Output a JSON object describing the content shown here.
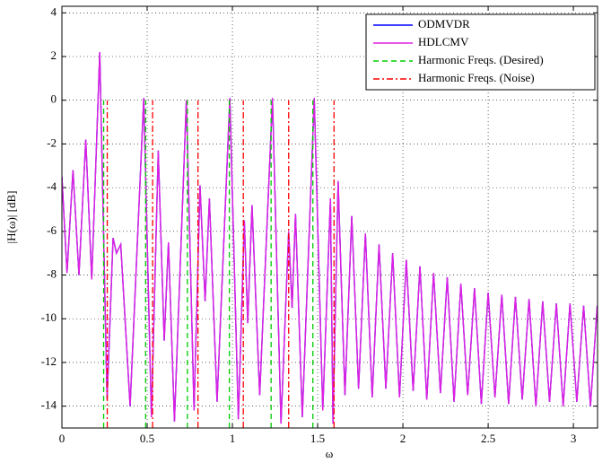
{
  "chart_data": {
    "type": "line",
    "xlabel": "ω",
    "ylabel": "|H(ω)| [dB]",
    "xlim": [
      0,
      3.1416
    ],
    "ylim": [
      -15,
      4.3
    ],
    "xticks": [
      0,
      0.5,
      1,
      1.5,
      2,
      2.5,
      3
    ],
    "yticks": [
      -14,
      -12,
      -10,
      -8,
      -6,
      -4,
      -2,
      0,
      2,
      4
    ],
    "grid": true,
    "legend": "upper right",
    "series": [
      {
        "name": "ODMVDR",
        "color": "#0000ff",
        "style": "solid",
        "x": [
          0,
          0.03,
          0.065,
          0.1,
          0.14,
          0.175,
          0.222,
          0.265,
          0.3,
          0.32,
          0.345,
          0.4,
          0.48,
          0.525,
          0.565,
          0.6,
          0.625,
          0.66,
          0.73,
          0.775,
          0.81,
          0.84,
          0.865,
          0.91,
          0.985,
          1.035,
          1.07,
          1.09,
          1.115,
          1.16,
          1.235,
          1.285,
          1.33,
          1.35,
          1.37,
          1.41,
          1.48,
          1.53,
          1.575,
          1.59,
          1.62,
          1.66,
          1.7,
          1.74,
          1.78,
          1.82,
          1.86,
          1.9,
          1.94,
          1.98,
          2.02,
          2.06,
          2.1,
          2.14,
          2.18,
          2.22,
          2.26,
          2.3,
          2.34,
          2.38,
          2.42,
          2.46,
          2.5,
          2.54,
          2.58,
          2.62,
          2.66,
          2.7,
          2.74,
          2.78,
          2.82,
          2.86,
          2.9,
          2.94,
          2.98,
          3.02,
          3.06,
          3.1,
          3.14
        ],
        "values": [
          -3.5,
          -7.9,
          -3.2,
          -8.0,
          -1.8,
          -8.2,
          2.2,
          -13.7,
          -6.3,
          -7.0,
          -6.6,
          -14.0,
          0.1,
          -14.5,
          -2.3,
          -11,
          -6.5,
          -14.7,
          0.0,
          -14.2,
          -3.9,
          -9.2,
          -4.5,
          -13.8,
          0.1,
          -14.6,
          -5.5,
          -10.2,
          -4.8,
          -13.5,
          0.1,
          -14.8,
          -6,
          -9.5,
          -5.2,
          -14.5,
          0.1,
          -14.2,
          -4.5,
          -14.8,
          -3.7,
          -13.5,
          -5.3,
          -13.2,
          -6.1,
          -13.6,
          -6.6,
          -13.2,
          -7.0,
          -13.6,
          -7.3,
          -13.3,
          -7.6,
          -13.7,
          -7.9,
          -13.4,
          -8.1,
          -13.8,
          -8.4,
          -13.5,
          -8.6,
          -13.9,
          -8.8,
          -13.6,
          -8.9,
          -13.9,
          -9.0,
          -13.7,
          -9.1,
          -14.0,
          -9.2,
          -13.8,
          -9.3,
          -14.0,
          -9.3,
          -13.8,
          -9.4,
          -14.0,
          -9.4
        ]
      },
      {
        "name": "HDLCMV",
        "color": "#e020e0",
        "style": "solid",
        "x": [
          0,
          0.03,
          0.065,
          0.1,
          0.14,
          0.175,
          0.222,
          0.265,
          0.3,
          0.32,
          0.345,
          0.4,
          0.48,
          0.525,
          0.565,
          0.6,
          0.625,
          0.66,
          0.73,
          0.775,
          0.81,
          0.84,
          0.865,
          0.91,
          0.985,
          1.035,
          1.07,
          1.09,
          1.115,
          1.16,
          1.235,
          1.285,
          1.33,
          1.35,
          1.37,
          1.41,
          1.48,
          1.53,
          1.575,
          1.59,
          1.62,
          1.66,
          1.7,
          1.74,
          1.78,
          1.82,
          1.86,
          1.9,
          1.94,
          1.98,
          2.02,
          2.06,
          2.1,
          2.14,
          2.18,
          2.22,
          2.26,
          2.3,
          2.34,
          2.38,
          2.42,
          2.46,
          2.5,
          2.54,
          2.58,
          2.62,
          2.66,
          2.7,
          2.74,
          2.78,
          2.82,
          2.86,
          2.9,
          2.94,
          2.98,
          3.02,
          3.06,
          3.1,
          3.14
        ],
        "values": [
          -3.5,
          -7.9,
          -3.2,
          -8.0,
          -1.8,
          -8.2,
          2.2,
          -13.7,
          -6.3,
          -7.0,
          -6.6,
          -14.0,
          0.1,
          -14.5,
          -2.3,
          -11,
          -6.5,
          -14.7,
          0.0,
          -14.2,
          -3.9,
          -9.2,
          -4.5,
          -13.8,
          0.1,
          -14.6,
          -5.5,
          -10.2,
          -4.8,
          -13.5,
          0.1,
          -14.8,
          -6,
          -9.5,
          -5.2,
          -14.5,
          0.1,
          -14.2,
          -4.5,
          -14.8,
          -3.7,
          -13.5,
          -5.3,
          -13.2,
          -6.1,
          -13.6,
          -6.6,
          -13.2,
          -7.0,
          -13.6,
          -7.3,
          -13.3,
          -7.6,
          -13.7,
          -7.9,
          -13.4,
          -8.1,
          -13.8,
          -8.4,
          -13.5,
          -8.6,
          -13.9,
          -8.8,
          -13.6,
          -8.9,
          -13.9,
          -9.0,
          -13.7,
          -9.1,
          -14.0,
          -9.2,
          -13.8,
          -9.3,
          -14.0,
          -9.3,
          -13.8,
          -9.4,
          -14.0,
          -9.4
        ]
      },
      {
        "name": "Harmonic Freqs. (Desired)",
        "color": "#00cc00",
        "style": "dashed",
        "stems": true,
        "x": [
          0.245,
          0.491,
          0.736,
          0.982,
          1.227,
          1.472
        ],
        "values": [
          0,
          0,
          0,
          0,
          0,
          0
        ]
      },
      {
        "name": "Harmonic Freqs. (Noise)",
        "color": "#ff0000",
        "style": "dashdot",
        "stems": true,
        "x": [
          0.266,
          0.532,
          0.798,
          1.064,
          1.33,
          1.596
        ],
        "values": [
          0,
          0,
          0,
          0,
          0,
          0
        ]
      }
    ]
  }
}
